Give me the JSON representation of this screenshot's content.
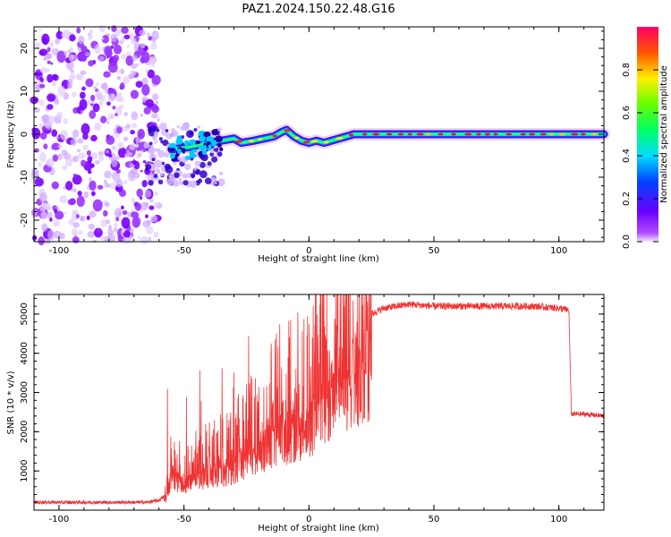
{
  "title": "PAZ1.2024.150.22.48.G16",
  "chart_data": [
    {
      "type": "heatmap",
      "xlabel": "Height of straight line (km)",
      "ylabel": "Frequency (Hz)",
      "xlim": [
        -110,
        118
      ],
      "ylim": [
        -25,
        25
      ],
      "xticks": [
        -100,
        -50,
        0,
        50,
        100
      ],
      "yticks": [
        -20,
        -10,
        0,
        10,
        20
      ],
      "colorbar": {
        "label": "Normalized spectral amplitude",
        "range": [
          0,
          1
        ],
        "ticks": [
          0.0,
          0.2,
          0.4,
          0.6,
          0.8
        ]
      },
      "ridge_frequency_hz": {
        "x": [
          -55,
          -48,
          -40,
          -35,
          -30,
          -27,
          -22,
          -18,
          -14,
          -11,
          -9,
          -6,
          -3,
          0,
          3,
          6,
          9,
          12,
          15,
          18,
          25,
          40,
          60,
          80,
          100,
          118
        ],
        "y": [
          -3.5,
          -3,
          -2,
          -1.5,
          -1,
          -2,
          -1.5,
          -1,
          -0.5,
          0.5,
          1,
          -0.5,
          -1.5,
          -2,
          -1.5,
          -2,
          -1.5,
          -1,
          -0.5,
          0,
          0,
          0,
          0,
          0,
          0,
          0
        ]
      },
      "noise_region_x": [
        -110,
        -60
      ],
      "grid": false
    },
    {
      "type": "line",
      "xlabel": "Height of straight line (km)",
      "ylabel": "SNR (10 * v/v)",
      "xlim": [
        -110,
        118
      ],
      "ylim": [
        0,
        5500
      ],
      "xticks": [
        -100,
        -50,
        0,
        50,
        100
      ],
      "yticks": [
        1000,
        2000,
        3000,
        4000,
        5000
      ],
      "color": "#ee3333",
      "envelope": {
        "x": [
          -110,
          -65,
          -60,
          -57,
          -55,
          -50,
          -45,
          -40,
          -35,
          -30,
          -25,
          -20,
          -15,
          -10,
          -5,
          0,
          5,
          10,
          15,
          20,
          25,
          30,
          40,
          50,
          60,
          70,
          80,
          90,
          100,
          104,
          105,
          110,
          118
        ],
        "y": [
          200,
          200,
          250,
          400,
          1200,
          800,
          1100,
          1200,
          1300,
          1400,
          1800,
          2000,
          2300,
          2500,
          2700,
          2900,
          3400,
          3900,
          4300,
          4700,
          5000,
          5150,
          5250,
          5200,
          5200,
          5200,
          5200,
          5200,
          5150,
          5100,
          2450,
          2450,
          2400
        ]
      },
      "grid": false
    }
  ]
}
